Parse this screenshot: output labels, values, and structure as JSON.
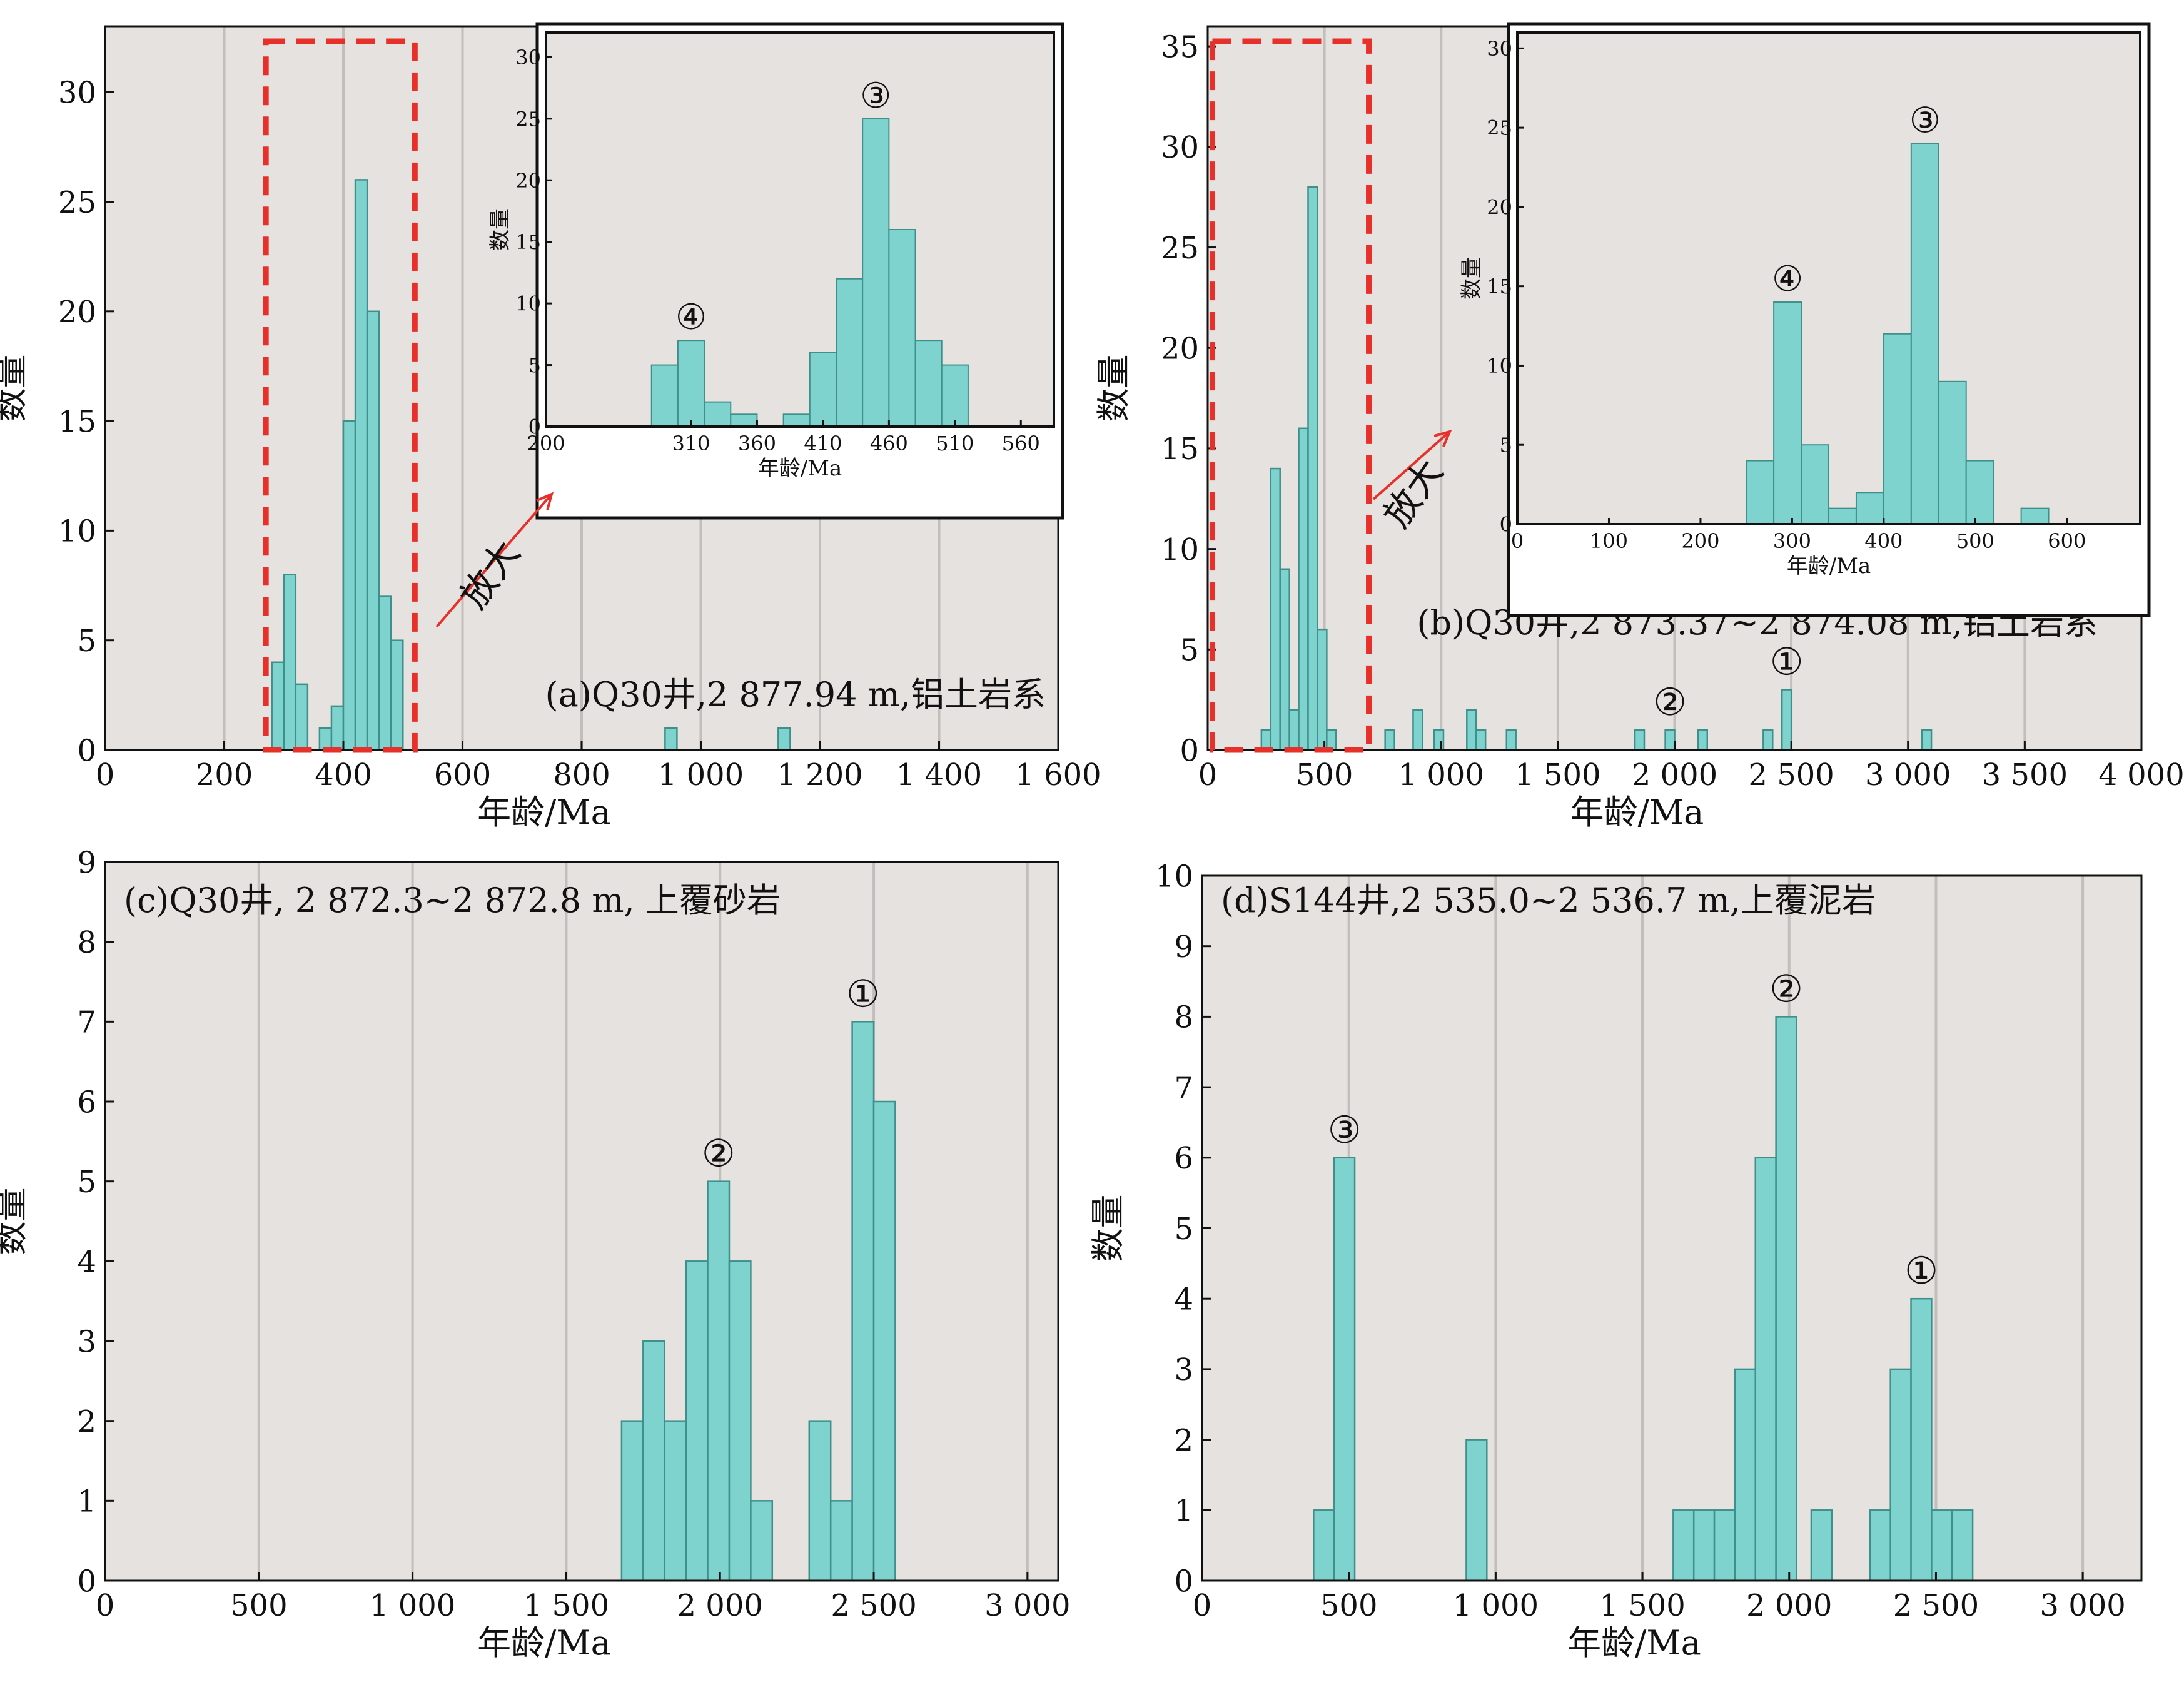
{
  "colors": {
    "bar_fill": "#7fd3cf",
    "bar_stroke": "#3f8f8b",
    "plot_bg": "#e6e2e0",
    "grid": "#c2bebc",
    "zoom_box": "#e8302a",
    "arrow": "#e8302a",
    "frame": "#111111"
  },
  "chart_data": [
    {
      "id": "a",
      "type": "bar",
      "annotation": "(a)Q30井,2 877.94 m,铝土岩系",
      "xlabel": "年龄/Ma",
      "ylabel": "数量",
      "xlim": [
        0,
        1600
      ],
      "ylim": [
        0,
        33
      ],
      "x_ticks": [
        0,
        200,
        400,
        600,
        800,
        1000,
        1200,
        1400,
        1600
      ],
      "x_tick_labels": [
        "0",
        "200",
        "400",
        "600",
        "800",
        "1 000",
        "1 200",
        "1 400",
        "1 600"
      ],
      "y_ticks": [
        0,
        5,
        10,
        15,
        20,
        25,
        30
      ],
      "y_tick_labels": [
        "0",
        "5",
        "10",
        "15",
        "20",
        "25",
        "30"
      ],
      "grid": true,
      "bin_width": 20,
      "bars": [
        [
          290,
          4
        ],
        [
          310,
          8
        ],
        [
          330,
          3
        ],
        [
          370,
          1
        ],
        [
          390,
          2
        ],
        [
          410,
          15
        ],
        [
          430,
          26
        ],
        [
          450,
          20
        ],
        [
          470,
          7
        ],
        [
          490,
          5
        ],
        [
          950,
          1
        ],
        [
          1140,
          1
        ]
      ],
      "zoom_label": "放大",
      "zoom_range": [
        270,
        520
      ],
      "inset": {
        "xlabel": "年龄/Ma",
        "ylabel": "数量",
        "xlim": [
          200,
          585
        ],
        "ylim": [
          0,
          32
        ],
        "x_ticks": [
          200,
          310,
          360,
          410,
          460,
          510,
          560
        ],
        "x_tick_labels": [
          "200",
          "310",
          "360",
          "410",
          "460",
          "510",
          "560"
        ],
        "y_ticks": [
          0,
          5,
          10,
          15,
          20,
          25,
          30
        ],
        "y_tick_labels": [
          "0",
          "5",
          "10",
          "15",
          "20",
          "25",
          "30"
        ],
        "bin_width": 20,
        "bars": [
          [
            290,
            5
          ],
          [
            310,
            7
          ],
          [
            330,
            2
          ],
          [
            350,
            1
          ],
          [
            390,
            1
          ],
          [
            410,
            6
          ],
          [
            430,
            12
          ],
          [
            450,
            25
          ],
          [
            470,
            16
          ],
          [
            490,
            7
          ],
          [
            510,
            5
          ]
        ],
        "peaks": [
          {
            "label": "④",
            "x": 310,
            "y": 7
          },
          {
            "label": "③",
            "x": 450,
            "y": 25
          }
        ]
      }
    },
    {
      "id": "b",
      "type": "bar",
      "annotation": "(b)Q30井,2 873.37~2 874.08 m,铝土岩系",
      "xlabel": "年龄/Ma",
      "ylabel": "数量",
      "xlim": [
        0,
        4000
      ],
      "ylim": [
        0,
        36
      ],
      "x_ticks": [
        0,
        500,
        1000,
        1500,
        2000,
        2500,
        3000,
        3500,
        4000
      ],
      "x_tick_labels": [
        "0",
        "500",
        "1 000",
        "1 500",
        "2 000",
        "2 500",
        "3 000",
        "3 500",
        "4 000"
      ],
      "y_ticks": [
        0,
        5,
        10,
        15,
        20,
        25,
        30,
        35
      ],
      "y_tick_labels": [
        "0",
        "5",
        "10",
        "15",
        "20",
        "25",
        "30",
        "35"
      ],
      "grid": true,
      "bin_width": 40,
      "bars": [
        [
          250,
          1
        ],
        [
          290,
          14
        ],
        [
          330,
          9
        ],
        [
          370,
          2
        ],
        [
          410,
          16
        ],
        [
          450,
          28
        ],
        [
          490,
          6
        ],
        [
          530,
          1
        ],
        [
          780,
          1
        ],
        [
          900,
          2
        ],
        [
          990,
          1
        ],
        [
          1130,
          2
        ],
        [
          1170,
          1
        ],
        [
          1300,
          1
        ],
        [
          1850,
          1
        ],
        [
          1980,
          1
        ],
        [
          2120,
          1
        ],
        [
          2400,
          1
        ],
        [
          2480,
          3
        ],
        [
          3080,
          1
        ]
      ],
      "peaks": [
        {
          "label": "②",
          "x": 1980,
          "y": 1
        },
        {
          "label": "①",
          "x": 2480,
          "y": 3
        }
      ],
      "zoom_label": "放大",
      "zoom_range": [
        20,
        690
      ],
      "inset": {
        "xlabel": "年龄/Ma",
        "ylabel": "数量",
        "xlim": [
          0,
          680
        ],
        "ylim": [
          0,
          31
        ],
        "x_ticks": [
          0,
          100,
          200,
          300,
          400,
          500,
          600
        ],
        "x_tick_labels": [
          "0",
          "100",
          "200",
          "300",
          "400",
          "500",
          "600"
        ],
        "y_ticks": [
          0,
          5,
          10,
          15,
          20,
          25,
          30
        ],
        "y_tick_labels": [
          "0",
          "5",
          "10",
          "15",
          "20",
          "25",
          "30"
        ],
        "bin_width": 30,
        "bars": [
          [
            265,
            4
          ],
          [
            295,
            14
          ],
          [
            325,
            5
          ],
          [
            355,
            1
          ],
          [
            385,
            2
          ],
          [
            415,
            12
          ],
          [
            445,
            24
          ],
          [
            475,
            9
          ],
          [
            505,
            4
          ],
          [
            565,
            1
          ]
        ],
        "peaks": [
          {
            "label": "④",
            "x": 295,
            "y": 14
          },
          {
            "label": "③",
            "x": 445,
            "y": 24
          }
        ]
      }
    },
    {
      "id": "c",
      "type": "bar",
      "annotation": "(c)Q30井, 2 872.3~2 872.8 m, 上覆砂岩",
      "xlabel": "年龄/Ma",
      "ylabel": "数量",
      "xlim": [
        0,
        3100
      ],
      "ylim": [
        0,
        9
      ],
      "x_ticks": [
        0,
        500,
        1000,
        1500,
        2000,
        2500,
        3000
      ],
      "x_tick_labels": [
        "0",
        "500",
        "1 000",
        "1 500",
        "2 000",
        "2 500",
        "3 000"
      ],
      "y_ticks": [
        0,
        1,
        2,
        3,
        4,
        5,
        6,
        7,
        8,
        9
      ],
      "y_tick_labels": [
        "0",
        "1",
        "2",
        "3",
        "4",
        "5",
        "6",
        "7",
        "8",
        "9"
      ],
      "grid": true,
      "bin_width": 70,
      "bars": [
        [
          1715,
          2
        ],
        [
          1785,
          3
        ],
        [
          1855,
          2
        ],
        [
          1925,
          4
        ],
        [
          1995,
          5
        ],
        [
          2065,
          4
        ],
        [
          2135,
          1
        ],
        [
          2325,
          2
        ],
        [
          2395,
          1
        ],
        [
          2465,
          7
        ],
        [
          2535,
          6
        ]
      ],
      "peaks": [
        {
          "label": "②",
          "x": 1995,
          "y": 5
        },
        {
          "label": "①",
          "x": 2465,
          "y": 7
        }
      ]
    },
    {
      "id": "d",
      "type": "bar",
      "annotation": "(d)S144井,2 535.0~2 536.7 m,上覆泥岩",
      "xlabel": "年龄/Ma",
      "ylabel": "数量",
      "xlim": [
        0,
        3200
      ],
      "ylim": [
        0,
        10
      ],
      "x_ticks": [
        0,
        500,
        1000,
        1500,
        2000,
        2500,
        3000
      ],
      "x_tick_labels": [
        "0",
        "500",
        "1 000",
        "1 500",
        "2 000",
        "2 500",
        "3 000"
      ],
      "y_ticks": [
        0,
        1,
        2,
        3,
        4,
        5,
        6,
        7,
        8,
        9,
        10
      ],
      "y_tick_labels": [
        "0",
        "1",
        "2",
        "3",
        "4",
        "5",
        "6",
        "7",
        "8",
        "9",
        "10"
      ],
      "grid": true,
      "bin_width": 70,
      "bars": [
        [
          415,
          1
        ],
        [
          485,
          6
        ],
        [
          935,
          2
        ],
        [
          1640,
          1
        ],
        [
          1710,
          1
        ],
        [
          1780,
          1
        ],
        [
          1850,
          3
        ],
        [
          1920,
          6
        ],
        [
          1990,
          8
        ],
        [
          2110,
          1
        ],
        [
          2310,
          1
        ],
        [
          2380,
          3
        ],
        [
          2450,
          4
        ],
        [
          2520,
          1
        ],
        [
          2590,
          1
        ]
      ],
      "peaks": [
        {
          "label": "③",
          "x": 485,
          "y": 6
        },
        {
          "label": "②",
          "x": 1990,
          "y": 8
        },
        {
          "label": "①",
          "x": 2450,
          "y": 4
        }
      ]
    }
  ]
}
